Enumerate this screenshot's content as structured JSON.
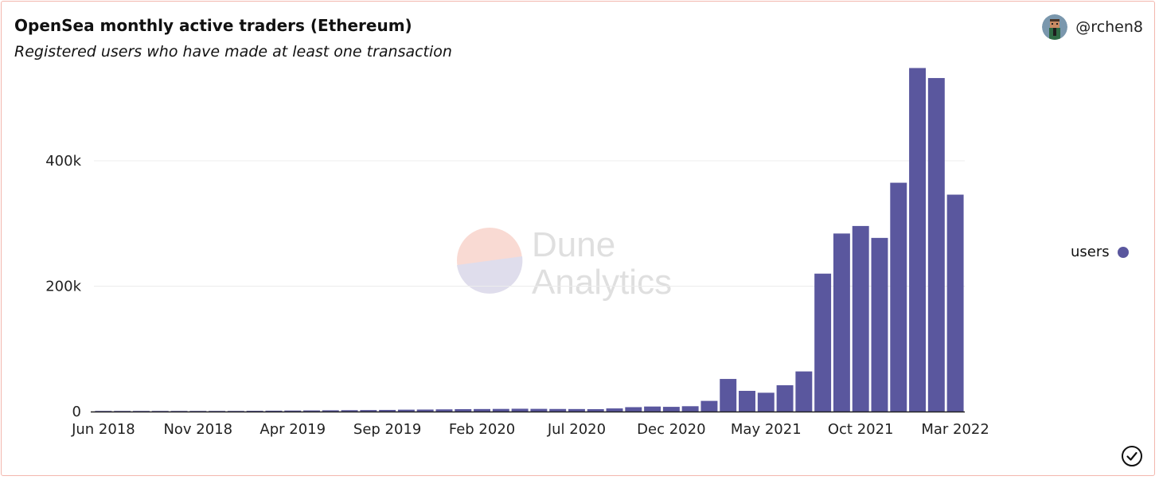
{
  "header": {
    "title": "OpenSea monthly active traders (Ethereum)",
    "subtitle": "Registered users who have made at least one transaction",
    "author": "@rchen8"
  },
  "icons": {
    "avatar": "avatar-icon",
    "verified": "check-circle-icon",
    "watermark": "dune-analytics-logo"
  },
  "watermark": {
    "line1": "Dune",
    "line2": "Analytics"
  },
  "colors": {
    "bar": "#5a579e",
    "grid": "#ececec",
    "axis": "#222222"
  },
  "chart_data": {
    "type": "bar",
    "title": "OpenSea monthly active traders (Ethereum)",
    "subtitle": "Registered users who have made at least one transaction",
    "xlabel": "",
    "ylabel": "",
    "ylim": [
      0,
      560000
    ],
    "yticks": [
      0,
      200000,
      400000
    ],
    "ytick_labels": [
      "0",
      "200k",
      "400k"
    ],
    "xtick_labels": [
      "Jun 2018",
      "Nov 2018",
      "Apr 2019",
      "Sep 2019",
      "Feb 2020",
      "Jul 2020",
      "Dec 2020",
      "May 2021",
      "Oct 2021",
      "Mar 2022"
    ],
    "grid": true,
    "legend_position": "right",
    "categories": [
      "Jun 2018",
      "Jul 2018",
      "Aug 2018",
      "Sep 2018",
      "Oct 2018",
      "Nov 2018",
      "Dec 2018",
      "Jan 2019",
      "Feb 2019",
      "Mar 2019",
      "Apr 2019",
      "May 2019",
      "Jun 2019",
      "Jul 2019",
      "Aug 2019",
      "Sep 2019",
      "Oct 2019",
      "Nov 2019",
      "Dec 2019",
      "Jan 2020",
      "Feb 2020",
      "Mar 2020",
      "Apr 2020",
      "May 2020",
      "Jun 2020",
      "Jul 2020",
      "Aug 2020",
      "Sep 2020",
      "Oct 2020",
      "Nov 2020",
      "Dec 2020",
      "Jan 2021",
      "Feb 2021",
      "Mar 2021",
      "Apr 2021",
      "May 2021",
      "Jun 2021",
      "Jul 2021",
      "Aug 2021",
      "Sep 2021",
      "Oct 2021",
      "Nov 2021",
      "Dec 2021",
      "Jan 2022",
      "Feb 2022",
      "Mar 2022"
    ],
    "series": [
      {
        "name": "users",
        "values": [
          300,
          400,
          500,
          600,
          700,
          800,
          900,
          1000,
          1200,
          1400,
          1600,
          1800,
          2000,
          2200,
          2400,
          2600,
          3000,
          3200,
          3500,
          3800,
          4000,
          4200,
          4500,
          4300,
          4100,
          4000,
          3800,
          5000,
          7000,
          8000,
          7500,
          8500,
          17000,
          52000,
          33000,
          30000,
          42000,
          64000,
          220000,
          284000,
          296000,
          277000,
          365000,
          548000,
          532000,
          346000
        ]
      }
    ]
  }
}
